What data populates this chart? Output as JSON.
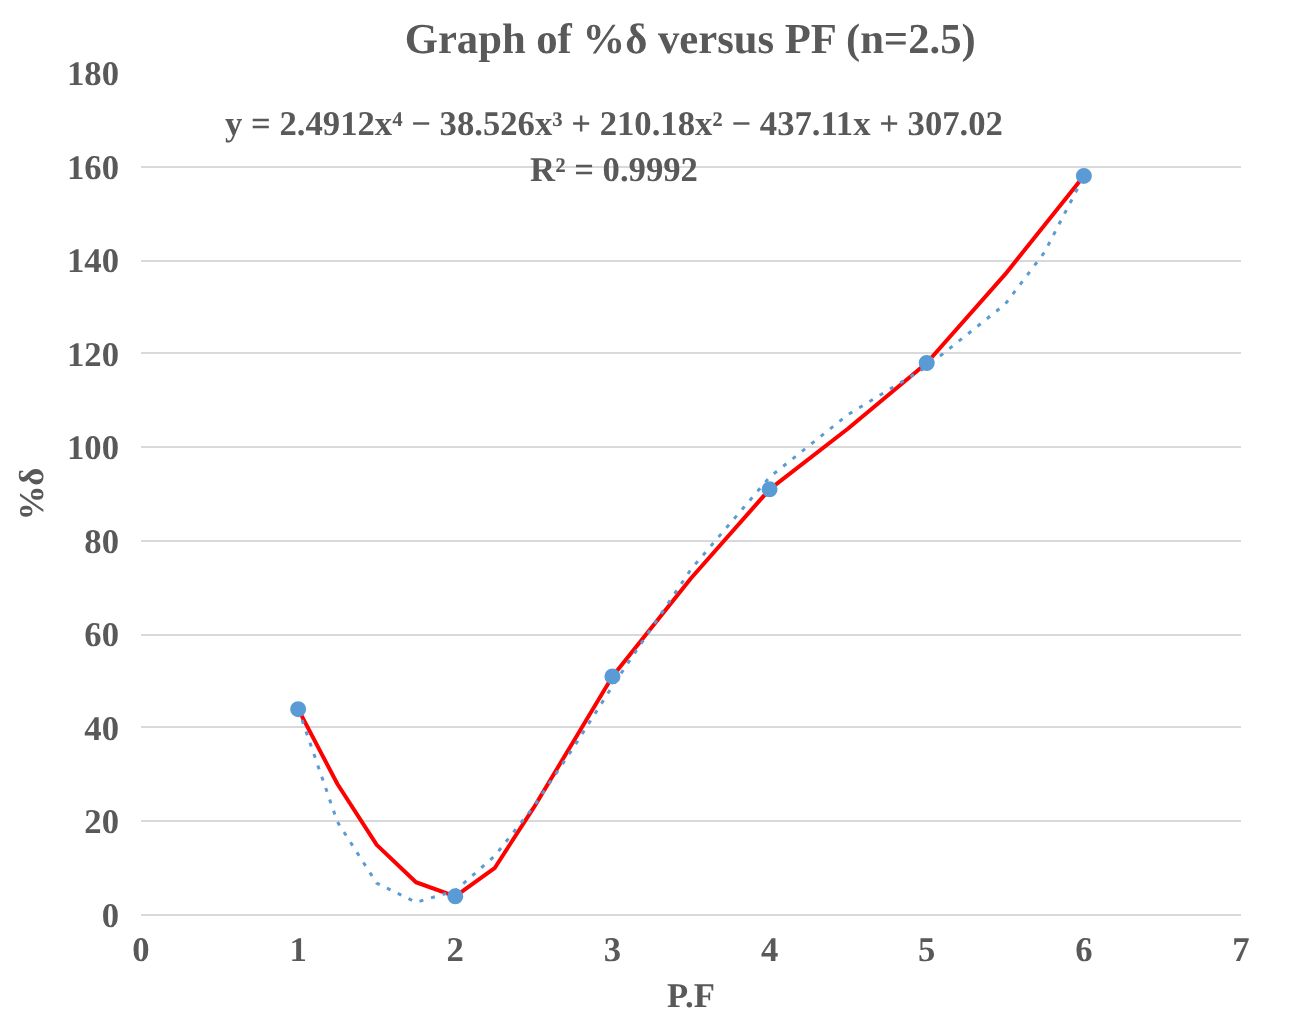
{
  "chart_data": {
    "type": "line",
    "title": "Graph of %δ versus PF (n=2.5)",
    "xlabel": "P.F",
    "ylabel": "%δ",
    "x": [
      1,
      2,
      3,
      4,
      5,
      6
    ],
    "series": [
      {
        "color": "#ff0000",
        "x": [
          1,
          1.25,
          1.5,
          1.75,
          2,
          2.25,
          2.5,
          2.75,
          3,
          3.5,
          4,
          4.5,
          5,
          5.5,
          6
        ],
        "values": [
          44,
          28,
          15,
          7,
          4,
          10,
          23,
          37,
          51,
          72,
          91,
          104,
          118,
          137,
          158
        ],
        "marker": "none",
        "line_style": "solid"
      },
      {
        "color": "#5b9bd5",
        "x": [
          1,
          1.25,
          1.5,
          1.75,
          2,
          2.25,
          2.5,
          2.75,
          3,
          3.5,
          4,
          4.5,
          5,
          5.5,
          5.75,
          6
        ],
        "values": [
          44.1,
          19.9,
          6.8,
          2.7,
          5.2,
          12.6,
          23.2,
          35.7,
          48.9,
          73.9,
          93.6,
          107.0,
          117.2,
          130.6,
          141.7,
          157.9
        ],
        "marker": "none",
        "line_style": "dotted"
      },
      {
        "type": "scatter",
        "color": "#5b9bd5",
        "values": [
          44,
          4,
          51,
          91,
          118,
          158
        ],
        "marker": "circle"
      }
    ],
    "annotations": [
      "y = 2.4912x⁴ − 38.526x³ + 210.18x² − 437.11x + 307.02",
      "R² = 0.9992"
    ],
    "xlim": [
      0,
      7
    ],
    "xticks": [
      0,
      1,
      2,
      3,
      4,
      5,
      6,
      7
    ],
    "ylim": [
      0,
      180
    ],
    "yticks": [
      0,
      20,
      40,
      60,
      80,
      100,
      120,
      140,
      160,
      180
    ],
    "grid": "y"
  }
}
